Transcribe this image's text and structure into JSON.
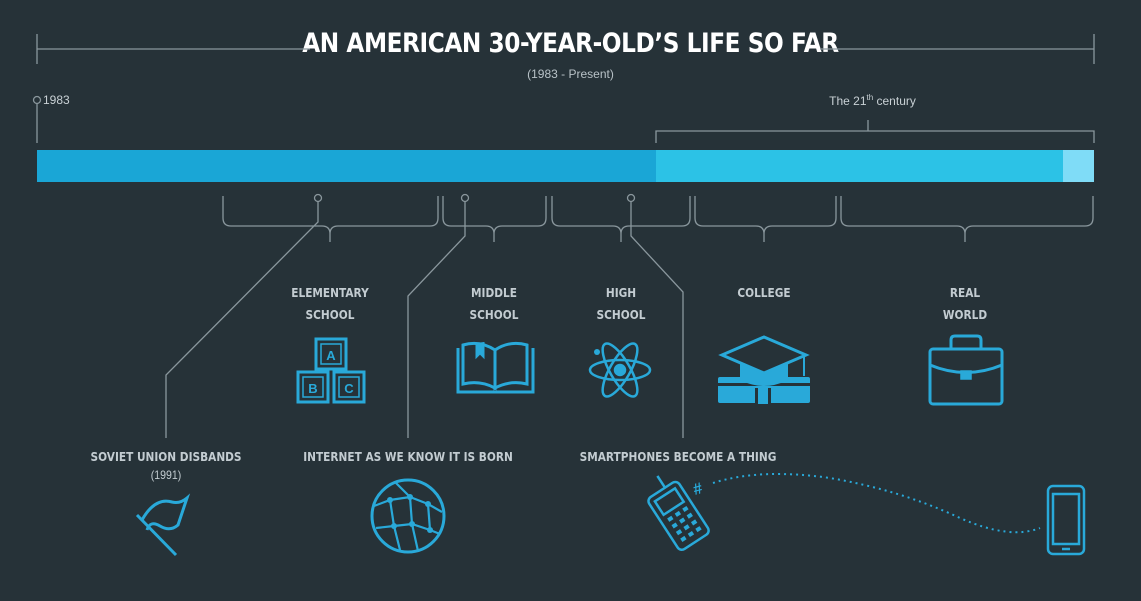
{
  "header": {
    "title": "AN AMERICAN 30-YEAR-OLD’S LIFE SO FAR",
    "subtitle": "(1983 - Present)"
  },
  "timeline": {
    "start_label": "1983",
    "century_label": "The 21",
    "century_superscript": "th",
    "century_suffix": " century"
  },
  "stages": [
    {
      "line1": "ELEMENTARY",
      "line2": "SCHOOL",
      "icon": "abc-blocks-icon"
    },
    {
      "line1": "MIDDLE",
      "line2": "SCHOOL",
      "icon": "open-book-icon"
    },
    {
      "line1": "HIGH",
      "line2": "SCHOOL",
      "icon": "atom-icon"
    },
    {
      "line1": "COLLEGE",
      "line2": "",
      "icon": "graduation-cap-icon"
    },
    {
      "line1": "REAL",
      "line2": "WORLD",
      "icon": "briefcase-icon"
    }
  ],
  "events": [
    {
      "label": "SOVIET UNION DISBANDS",
      "year": "(1991)",
      "icon": "flag-icon"
    },
    {
      "label": "INTERNET AS WE KNOW IT IS BORN",
      "icon": "globe-network-icon"
    },
    {
      "label": "SMARTPHONES BECOME A THING",
      "icon": "phone-to-smartphone-icon"
    }
  ],
  "icons": {
    "blocks": [
      "A",
      "B",
      "C"
    ],
    "hashtag": "#"
  },
  "colors": {
    "background": "#263238",
    "bar_20th_century": "#1aa6d6",
    "bar_21st_century": "#2cc2e6",
    "bar_present": "#7fdcf7",
    "lines": "#8a979d",
    "icons": "#29a9d9"
  }
}
